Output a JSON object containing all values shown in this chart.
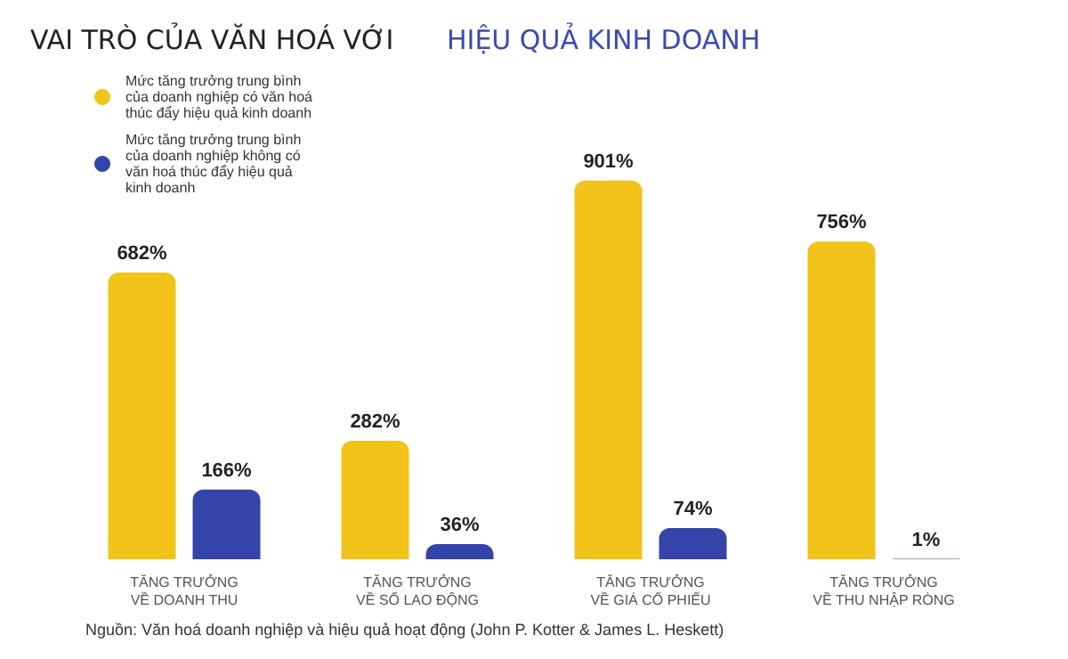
{
  "chart_data": {
    "type": "bar",
    "title": "VAI TRÒ CỦA VĂN HOÁ VỚI ",
    "subtitle": "HIỆU QUẢ KINH DOANH",
    "categories": [
      "TĂNG TRƯỞNG\nVỀ DOANH THU",
      "TĂNG TRƯỞNG\nVỀ SỐ LAO ĐỘNG",
      "TĂNG TRƯỞNG\nVỀ GIÁ CỔ PHIẾU",
      "TĂNG TRƯỞNG\nVỀ THU NHẬP RÒNG"
    ],
    "series": [
      {
        "name": "Mức tăng trưởng trung bình của doanh nghiệp có văn hoá thúc đẩy hiệu quả kinh doanh",
        "color": "#f2c318",
        "values": [
          682,
          282,
          901,
          756
        ],
        "value_labels": [
          "682%",
          "282%",
          "901%",
          "756%"
        ]
      },
      {
        "name": "Mức tăng trưởng trung bình của doanh nghiệp không có văn hoá thúc đẩy hiệu quả kinh doanh",
        "color": "#3444a8",
        "values": [
          166,
          36,
          74,
          1
        ],
        "value_labels": [
          "166%",
          "36%",
          "74%",
          "1%"
        ]
      }
    ],
    "legend": "top left",
    "annotations": [
      "Nguồn: Văn hoá doanh nghiệp và hiệu quả hoạt động (John P. Kotter & James L. Heskett)"
    ]
  }
}
